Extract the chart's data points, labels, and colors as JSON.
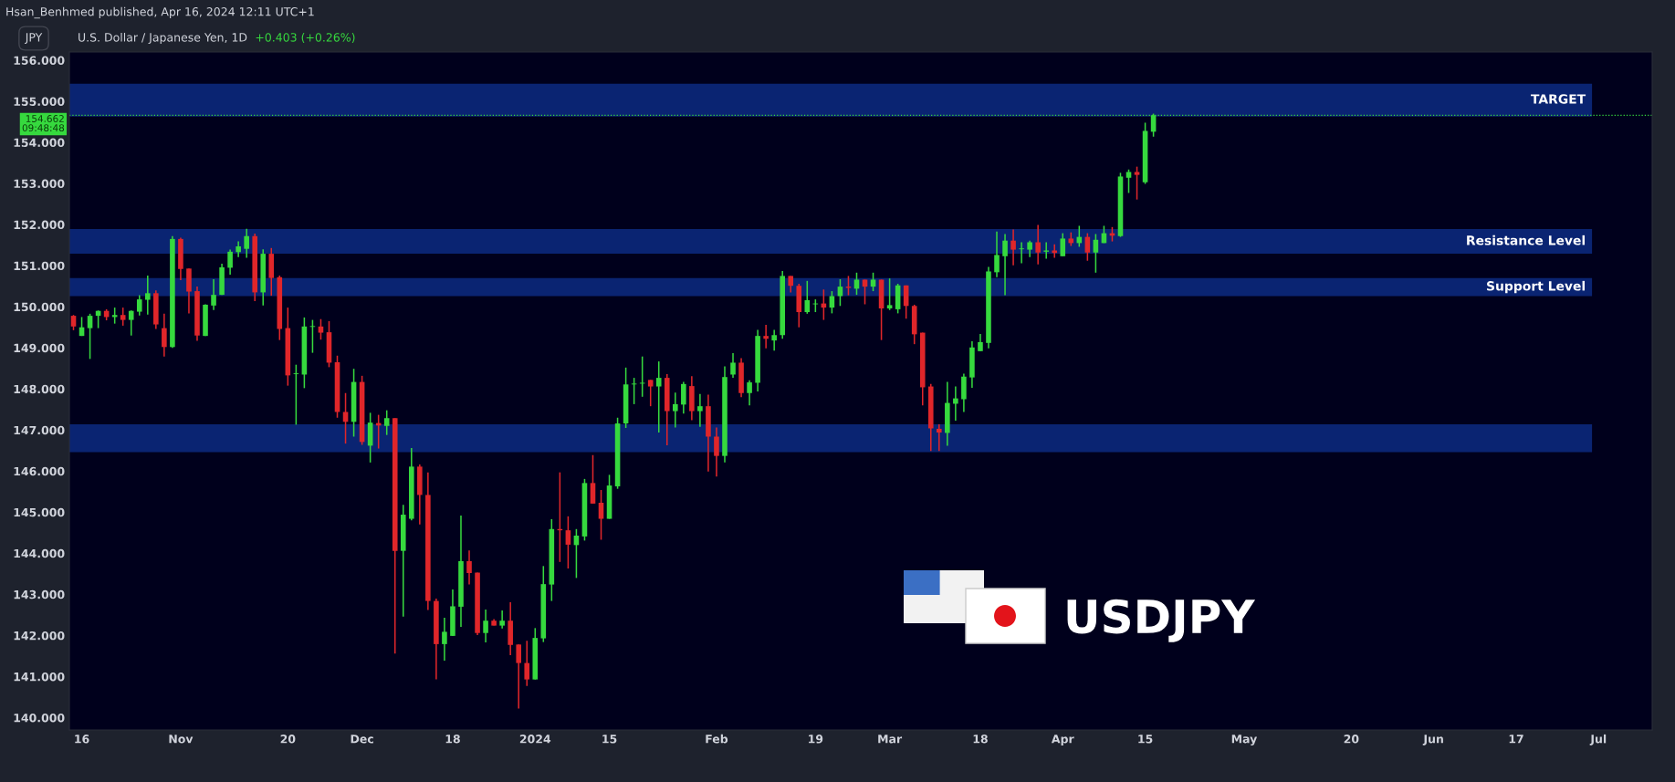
{
  "chart_data": {
    "type": "candlestick",
    "title": "U.S. Dollar / Japanese Yen, 1D",
    "subtitle": "+0.403 (+0.26%)",
    "annotations": [
      "Hsan_Benhmed published, Apr 16, 2024 12:11 UTC+1",
      "JPY",
      "USDJPY"
    ],
    "categories": [
      null,
      "16",
      null,
      null,
      null,
      null,
      null,
      null,
      null,
      null,
      null,
      null,
      null,
      "Nov",
      null,
      null,
      null,
      null,
      null,
      null,
      null,
      null,
      null,
      null,
      null,
      null,
      "20",
      null,
      null,
      null,
      null,
      null,
      null,
      null,
      null,
      "Dec",
      null,
      null,
      null,
      null,
      null,
      null,
      null,
      null,
      null,
      null,
      "18",
      null,
      null,
      null,
      null,
      null,
      null,
      null,
      null,
      null,
      "2024",
      null,
      null,
      null,
      null,
      null,
      null,
      null,
      null,
      "15",
      null,
      null,
      null,
      null,
      null,
      null,
      null,
      null,
      null,
      null,
      null,
      null,
      "Feb",
      null,
      null,
      null,
      null,
      null,
      null,
      null,
      null,
      null,
      null,
      null,
      "19",
      null,
      null,
      null,
      null,
      null,
      null,
      null,
      null,
      "Mar",
      null,
      null,
      null,
      null,
      null,
      null,
      null,
      null,
      null,
      null,
      "18",
      null,
      null,
      null,
      null,
      null,
      null,
      null,
      null,
      null,
      "Apr",
      null,
      null,
      null,
      null,
      null,
      null,
      null,
      null,
      null,
      "15",
      null,
      null,
      null,
      null,
      null,
      null,
      null,
      null,
      null,
      null,
      null,
      "May",
      null,
      null,
      null,
      null,
      null,
      null,
      null,
      null,
      null,
      null,
      null,
      null,
      "20",
      null,
      null,
      null,
      null,
      null,
      null,
      null,
      null,
      null,
      "Jun",
      null,
      null,
      null,
      null,
      null,
      null,
      null,
      null,
      null,
      "17",
      null,
      null,
      null,
      null,
      null,
      null,
      null,
      null,
      null,
      "Jul",
      null,
      null,
      null,
      null,
      null,
      null
    ],
    "ohlc": [
      [
        149.78,
        149.8,
        149.43,
        149.52
      ],
      [
        149.29,
        149.75,
        149.29,
        149.5
      ],
      [
        149.48,
        149.83,
        148.73,
        149.78
      ],
      [
        149.78,
        149.91,
        149.48,
        149.9
      ],
      [
        149.9,
        149.94,
        149.67,
        149.75
      ],
      [
        149.75,
        149.98,
        149.59,
        149.8
      ],
      [
        149.8,
        149.98,
        149.54,
        149.68
      ],
      [
        149.68,
        149.91,
        149.3,
        149.9
      ],
      [
        149.88,
        150.28,
        149.79,
        150.18
      ],
      [
        150.17,
        150.76,
        149.81,
        150.33
      ],
      [
        150.33,
        150.4,
        149.46,
        149.57
      ],
      [
        149.48,
        149.83,
        148.79,
        149.02
      ],
      [
        149.02,
        151.72,
        149.0,
        151.65
      ],
      [
        151.65,
        151.68,
        150.65,
        150.92
      ],
      [
        150.93,
        150.93,
        149.84,
        150.37
      ],
      [
        150.38,
        150.49,
        149.17,
        149.3
      ],
      [
        149.29,
        150.06,
        149.29,
        150.05
      ],
      [
        150.03,
        150.67,
        149.92,
        150.29
      ],
      [
        150.29,
        151.05,
        150.29,
        150.96
      ],
      [
        150.95,
        151.39,
        150.78,
        151.34
      ],
      [
        151.33,
        151.59,
        151.21,
        151.47
      ],
      [
        151.41,
        151.9,
        151.19,
        151.72
      ],
      [
        151.72,
        151.78,
        150.14,
        150.35
      ],
      [
        150.35,
        151.4,
        150.03,
        151.29
      ],
      [
        151.29,
        151.43,
        150.27,
        150.7
      ],
      [
        150.72,
        150.76,
        149.19,
        149.46
      ],
      [
        149.48,
        149.98,
        148.08,
        148.33
      ],
      [
        148.36,
        148.59,
        147.13,
        148.36
      ],
      [
        148.35,
        149.74,
        148.02,
        149.52
      ],
      [
        149.51,
        149.68,
        148.88,
        149.52
      ],
      [
        149.52,
        149.7,
        149.2,
        149.37
      ],
      [
        149.38,
        149.65,
        148.53,
        148.64
      ],
      [
        148.65,
        148.81,
        147.3,
        147.44
      ],
      [
        147.44,
        147.9,
        146.67,
        147.2
      ],
      [
        147.2,
        148.49,
        146.84,
        148.17
      ],
      [
        148.17,
        148.32,
        146.64,
        146.71
      ],
      [
        146.62,
        147.42,
        146.21,
        147.18
      ],
      [
        147.17,
        147.37,
        146.55,
        147.11
      ],
      [
        147.1,
        147.48,
        146.88,
        147.29
      ],
      [
        147.29,
        147.29,
        141.56,
        144.06
      ],
      [
        144.06,
        145.18,
        142.46,
        144.94
      ],
      [
        144.84,
        146.56,
        144.8,
        146.11
      ],
      [
        146.11,
        146.16,
        144.7,
        145.42
      ],
      [
        145.42,
        145.97,
        142.62,
        142.84
      ],
      [
        142.84,
        142.9,
        140.93,
        141.79
      ],
      [
        141.79,
        142.43,
        141.39,
        142.09
      ],
      [
        141.99,
        143.12,
        141.99,
        142.71
      ],
      [
        142.7,
        144.92,
        142.21,
        143.81
      ],
      [
        143.81,
        144.07,
        143.24,
        143.52
      ],
      [
        143.53,
        143.53,
        142.01,
        142.06
      ],
      [
        142.06,
        142.63,
        141.83,
        142.36
      ],
      [
        142.36,
        142.4,
        142.24,
        142.24
      ],
      [
        142.24,
        142.61,
        142.17,
        142.36
      ],
      [
        142.36,
        142.81,
        141.52,
        141.77
      ],
      [
        141.78,
        141.78,
        140.22,
        141.33
      ],
      [
        141.33,
        141.87,
        140.77,
        140.93
      ],
      [
        140.93,
        142.18,
        140.93,
        141.94
      ],
      [
        141.93,
        143.69,
        141.84,
        143.25
      ],
      [
        143.24,
        144.83,
        142.84,
        144.59
      ],
      [
        144.59,
        145.97,
        143.79,
        144.56
      ],
      [
        144.56,
        144.9,
        143.63,
        144.21
      ],
      [
        144.2,
        144.59,
        143.4,
        144.43
      ],
      [
        144.41,
        145.81,
        144.31,
        145.71
      ],
      [
        145.71,
        146.39,
        145.21,
        145.21
      ],
      [
        145.23,
        145.54,
        144.33,
        144.84
      ],
      [
        144.84,
        145.91,
        144.84,
        145.65
      ],
      [
        145.63,
        147.3,
        145.57,
        147.16
      ],
      [
        147.16,
        148.52,
        147.05,
        148.11
      ],
      [
        148.11,
        148.27,
        147.63,
        148.12
      ],
      [
        148.13,
        148.79,
        147.81,
        148.14
      ],
      [
        148.22,
        148.22,
        147.58,
        148.06
      ],
      [
        148.06,
        148.67,
        146.94,
        148.27
      ],
      [
        148.27,
        148.36,
        146.63,
        147.46
      ],
      [
        147.46,
        147.91,
        147.06,
        147.63
      ],
      [
        147.62,
        148.17,
        147.4,
        148.12
      ],
      [
        148.07,
        148.31,
        147.24,
        147.46
      ],
      [
        147.46,
        147.88,
        147.08,
        147.58
      ],
      [
        147.58,
        147.86,
        145.99,
        146.84
      ],
      [
        146.84,
        147.06,
        145.87,
        146.37
      ],
      [
        146.37,
        148.55,
        146.21,
        148.29
      ],
      [
        148.35,
        148.87,
        148.27,
        148.64
      ],
      [
        148.64,
        148.75,
        147.8,
        147.9
      ],
      [
        147.9,
        148.21,
        147.6,
        148.16
      ],
      [
        148.15,
        149.44,
        147.94,
        149.29
      ],
      [
        149.29,
        149.56,
        148.99,
        149.22
      ],
      [
        149.18,
        149.44,
        148.93,
        149.31
      ],
      [
        149.31,
        150.87,
        149.22,
        150.75
      ],
      [
        150.75,
        150.75,
        150.35,
        150.51
      ],
      [
        150.51,
        150.56,
        149.5,
        149.87
      ],
      [
        149.87,
        150.63,
        149.83,
        150.16
      ],
      [
        150.06,
        150.18,
        149.87,
        150.08
      ],
      [
        150.08,
        150.42,
        149.68,
        149.98
      ],
      [
        149.98,
        150.38,
        149.84,
        150.26
      ],
      [
        150.26,
        150.67,
        150.02,
        150.49
      ],
      [
        150.49,
        150.75,
        150.28,
        150.46
      ],
      [
        150.44,
        150.83,
        150.29,
        150.66
      ],
      [
        150.66,
        150.66,
        150.06,
        150.49
      ],
      [
        150.49,
        150.83,
        150.38,
        150.66
      ],
      [
        150.66,
        150.66,
        149.19,
        149.96
      ],
      [
        149.96,
        150.69,
        149.92,
        150.04
      ],
      [
        149.94,
        150.56,
        149.84,
        150.52
      ],
      [
        150.52,
        150.52,
        149.71,
        150.02
      ],
      [
        150.02,
        150.05,
        149.09,
        149.33
      ],
      [
        149.37,
        149.37,
        147.6,
        148.04
      ],
      [
        148.06,
        148.12,
        146.49,
        147.04
      ],
      [
        147.03,
        147.14,
        146.49,
        146.94
      ],
      [
        146.93,
        148.17,
        146.62,
        147.66
      ],
      [
        147.64,
        148.06,
        147.23,
        147.77
      ],
      [
        147.75,
        148.37,
        147.44,
        148.3
      ],
      [
        148.28,
        149.16,
        148.03,
        149.01
      ],
      [
        148.92,
        149.34,
        148.92,
        149.14
      ],
      [
        149.12,
        150.97,
        148.99,
        150.86
      ],
      [
        150.84,
        151.83,
        150.72,
        151.26
      ],
      [
        151.23,
        151.77,
        150.28,
        151.61
      ],
      [
        151.61,
        151.88,
        151.01,
        151.39
      ],
      [
        151.4,
        151.57,
        151.06,
        151.41
      ],
      [
        151.39,
        151.61,
        151.21,
        151.57
      ],
      [
        151.57,
        151.99,
        151.03,
        151.32
      ],
      [
        151.34,
        151.57,
        151.17,
        151.37
      ],
      [
        151.37,
        151.52,
        151.19,
        151.31
      ],
      [
        151.23,
        151.79,
        151.23,
        151.66
      ],
      [
        151.66,
        151.81,
        151.48,
        151.55
      ],
      [
        151.55,
        151.97,
        151.46,
        151.7
      ],
      [
        151.7,
        151.79,
        151.12,
        151.32
      ],
      [
        151.32,
        151.77,
        150.83,
        151.63
      ],
      [
        151.55,
        151.97,
        151.55,
        151.79
      ],
      [
        151.79,
        151.94,
        151.59,
        151.73
      ],
      [
        151.72,
        153.26,
        151.7,
        153.17
      ],
      [
        153.14,
        153.34,
        152.77,
        153.28
      ],
      [
        153.28,
        153.41,
        152.61,
        153.21
      ],
      [
        153.03,
        154.48,
        152.99,
        154.28
      ],
      [
        154.26,
        154.7,
        154.14,
        154.662
      ],
      null,
      null,
      null,
      null,
      null,
      null,
      null,
      null,
      null,
      null,
      null,
      null,
      null,
      null,
      null,
      null,
      null,
      null,
      null,
      null,
      null,
      null,
      null,
      null,
      null,
      null,
      null,
      null,
      null,
      null,
      null,
      null,
      null,
      null,
      null,
      null,
      null,
      null,
      null,
      null,
      null,
      null,
      null,
      null,
      null,
      null,
      null,
      null,
      null,
      null,
      null,
      null,
      null,
      null,
      null,
      null,
      null,
      null,
      null,
      null
    ],
    "colors": [
      "#e0262a",
      "#36d93e",
      "#36d93e",
      "#36d93e",
      "#e0262a",
      "#36d93e",
      "#e0262a",
      "#36d93e",
      "#36d93e",
      "#36d93e",
      "#e0262a",
      "#e0262a",
      "#36d93e",
      "#e0262a",
      "#e0262a",
      "#e0262a",
      "#36d93e",
      "#36d93e",
      "#36d93e",
      "#36d93e",
      "#36d93e",
      "#36d93e",
      "#e0262a",
      "#36d93e",
      "#e0262a",
      "#e0262a",
      "#e0262a",
      "#36d93e",
      "#36d93e",
      "#36d93e",
      "#e0262a",
      "#e0262a",
      "#e0262a",
      "#e0262a",
      "#36d93e",
      "#e0262a",
      "#36d93e",
      "#e0262a",
      "#36d93e",
      "#e0262a",
      "#36d93e",
      "#36d93e",
      "#e0262a",
      "#e0262a",
      "#e0262a",
      "#36d93e",
      "#36d93e",
      "#36d93e",
      "#e0262a",
      "#e0262a",
      "#36d93e",
      "#e0262a",
      "#36d93e",
      "#e0262a",
      "#e0262a",
      "#e0262a",
      "#36d93e",
      "#36d93e",
      "#36d93e",
      "#e0262a",
      "#e0262a",
      "#36d93e",
      "#36d93e",
      "#e0262a",
      "#e0262a",
      "#36d93e",
      "#36d93e",
      "#36d93e",
      "#36d93e",
      "#36d93e",
      "#e0262a",
      "#36d93e",
      "#e0262a",
      "#36d93e",
      "#36d93e",
      "#e0262a",
      "#36d93e",
      "#e0262a",
      "#e0262a",
      "#36d93e",
      "#36d93e",
      "#e0262a",
      "#36d93e",
      "#36d93e",
      "#e0262a",
      "#36d93e",
      "#36d93e",
      "#e0262a",
      "#e0262a",
      "#36d93e",
      "#36d93e",
      "#e0262a",
      "#36d93e",
      "#36d93e",
      "#e0262a",
      "#36d93e",
      "#e0262a",
      "#36d93e",
      "#e0262a",
      "#36d93e",
      "#36d93e",
      "#e0262a",
      "#e0262a",
      "#e0262a",
      "#e0262a",
      "#e0262a",
      "#36d93e",
      "#36d93e",
      "#36d93e",
      "#36d93e",
      "#36d93e",
      "#36d93e",
      "#36d93e",
      "#36d93e",
      "#e0262a",
      "#36d93e",
      "#36d93e",
      "#e0262a",
      "#36d93e",
      "#e0262a",
      "#36d93e",
      "#e0262a",
      "#36d93e",
      "#e0262a",
      "#36d93e",
      "#36d93e",
      "#e0262a",
      "#36d93e",
      "#36d93e",
      "#e0262a",
      "#36d93e",
      "#36d93e",
      null,
      null,
      null,
      null,
      null,
      null,
      null,
      null,
      null,
      null,
      null,
      null,
      null,
      null,
      null,
      null,
      null,
      null,
      null,
      null,
      null,
      null,
      null,
      null,
      null,
      null,
      null,
      null,
      null,
      null,
      null,
      null,
      null,
      null,
      null,
      null,
      null,
      null,
      null,
      null,
      null,
      null,
      null,
      null,
      null,
      null,
      null,
      null,
      null,
      null,
      null,
      null,
      null,
      null,
      null,
      null,
      null,
      null,
      null,
      null
    ],
    "ylim": [
      139.7,
      156.2
    ],
    "yticks": [
      {
        "value": 140,
        "label": "140.000"
      },
      {
        "value": 141,
        "label": "141.000"
      },
      {
        "value": 142,
        "label": "142.000"
      },
      {
        "value": 143,
        "label": "143.000"
      },
      {
        "value": 144,
        "label": "144.000"
      },
      {
        "value": 145,
        "label": "145.000"
      },
      {
        "value": 146,
        "label": "146.000"
      },
      {
        "value": 147,
        "label": "147.000"
      },
      {
        "value": 148,
        "label": "148.000"
      },
      {
        "value": 149,
        "label": "149.000"
      },
      {
        "value": 150,
        "label": "150.000"
      },
      {
        "value": 151,
        "label": "151.000"
      },
      {
        "value": 152,
        "label": "152.000"
      },
      {
        "value": 153,
        "label": "153.000"
      },
      {
        "value": 154,
        "label": "154.000"
      },
      {
        "value": 155,
        "label": "155.000"
      },
      {
        "value": 156,
        "label": "156.000"
      }
    ],
    "bands": [
      {
        "axis": "y",
        "from": 154.63,
        "to": 155.43,
        "label": "TARGET",
        "color": "#0a2472"
      },
      {
        "axis": "y",
        "from": 151.29,
        "to": 151.89,
        "label": "Resistance Level",
        "color": "#0a2472"
      },
      {
        "axis": "y",
        "from": 150.26,
        "to": 150.7,
        "label": "Support Level",
        "color": "#0a2472"
      },
      {
        "axis": "y",
        "from": 146.46,
        "to": 147.14,
        "label": null,
        "color": "#0a2472"
      }
    ],
    "ref_lines": [
      {
        "axis": "y",
        "value": 154.662,
        "label": "154.662\n09:48:48",
        "color": "#36d93e",
        "line_style": "dotted"
      }
    ],
    "grid": false,
    "legend": false
  }
}
